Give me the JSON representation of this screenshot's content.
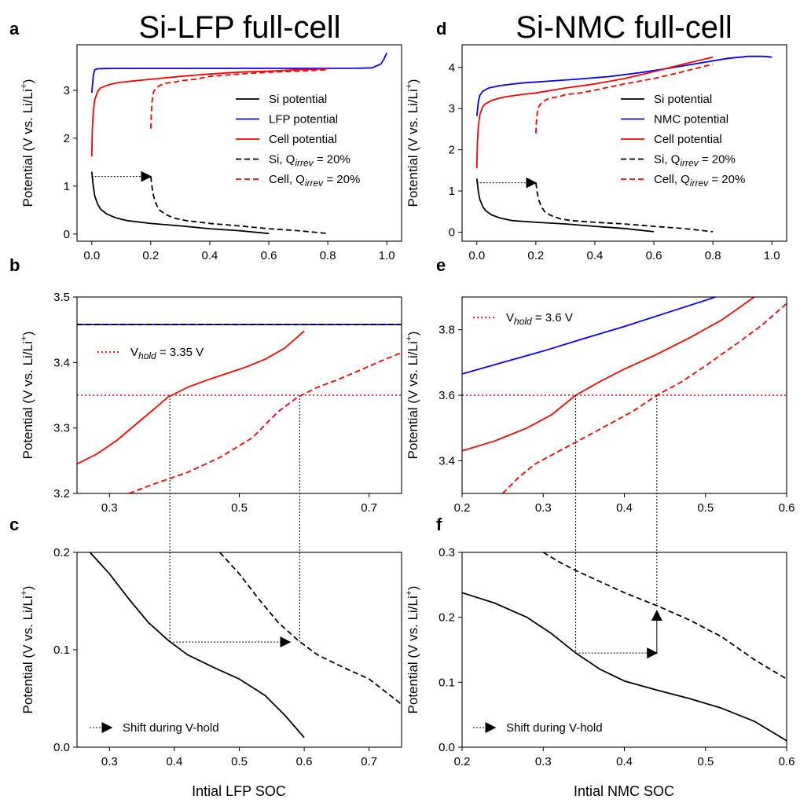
{
  "titles": {
    "left": "Si-LFP full-cell",
    "right": "Si-NMC full-cell"
  },
  "ylabel": "Potential (V vs. Li/Li",
  "ylabel_sup": "+",
  "ylabel_close": ")",
  "xlabels": {
    "left": "Intial LFP SOC",
    "right": "Intial NMC SOC"
  },
  "colors": {
    "si": "#000000",
    "cathode": "#0000ff",
    "cell": "#ff0000"
  },
  "chart_data": [
    {
      "panel": "a",
      "type": "line",
      "xlim": [
        -0.05,
        1.05
      ],
      "ylim": [
        -0.15,
        3.95
      ],
      "xticks": [
        0.0,
        0.2,
        0.4,
        0.6,
        0.8,
        1.0
      ],
      "xtick_labels": [
        "0.0",
        "0.2",
        "0.4",
        "0.6",
        "0.8",
        "1.0"
      ],
      "yticks": [
        0,
        1,
        2,
        3
      ],
      "ytick_labels": [
        "0",
        "1",
        "2",
        "3"
      ],
      "legend": [
        {
          "label": "Si potential",
          "color": "#000000",
          "style": "solid"
        },
        {
          "label": "LFP potential",
          "color": "#0000ff",
          "style": "solid"
        },
        {
          "label": "Cell potential",
          "color": "#ff0000",
          "style": "solid"
        },
        {
          "label": "Si, Q",
          "sub": "irrev",
          "suffix": " = 20%",
          "color": "#000000",
          "style": "dashed"
        },
        {
          "label": "Cell, Q",
          "sub": "irrev",
          "suffix": " = 20%",
          "color": "#ff0000",
          "style": "dashed"
        }
      ],
      "series": [
        {
          "color": "#000000",
          "style": "solid",
          "x": [
            0,
            0.005,
            0.01,
            0.02,
            0.03,
            0.05,
            0.08,
            0.12,
            0.2,
            0.3,
            0.4,
            0.5,
            0.6
          ],
          "y": [
            1.3,
            1.0,
            0.8,
            0.62,
            0.52,
            0.42,
            0.34,
            0.28,
            0.22,
            0.17,
            0.11,
            0.07,
            0.01
          ]
        },
        {
          "color": "#0000ff",
          "style": "solid",
          "x": [
            0,
            0.005,
            0.01,
            0.02,
            0.05,
            0.1,
            0.3,
            0.5,
            0.7,
            0.9,
            0.95,
            0.98,
            0.99,
            1.0
          ],
          "y": [
            2.95,
            3.3,
            3.43,
            3.45,
            3.455,
            3.457,
            3.458,
            3.458,
            3.458,
            3.46,
            3.47,
            3.55,
            3.65,
            3.78
          ]
        },
        {
          "color": "#ff0000",
          "style": "solid",
          "x": [
            0,
            0.002,
            0.005,
            0.01,
            0.02,
            0.03,
            0.05,
            0.08,
            0.1,
            0.15,
            0.2,
            0.3,
            0.4,
            0.5,
            0.6,
            0.7,
            0.8
          ],
          "y": [
            1.62,
            2.2,
            2.55,
            2.8,
            2.98,
            3.05,
            3.1,
            3.15,
            3.17,
            3.2,
            3.23,
            3.29,
            3.34,
            3.38,
            3.4,
            3.43,
            3.45
          ]
        },
        {
          "color": "#000000",
          "style": "dashed",
          "x": [
            0.2,
            0.205,
            0.21,
            0.22,
            0.23,
            0.25,
            0.28,
            0.32,
            0.4,
            0.5,
            0.6,
            0.7,
            0.8
          ],
          "y": [
            1.2,
            0.95,
            0.78,
            0.6,
            0.5,
            0.41,
            0.33,
            0.28,
            0.22,
            0.17,
            0.11,
            0.07,
            0.01
          ]
        },
        {
          "color": "#ff0000",
          "style": "dashed",
          "x": [
            0.2,
            0.202,
            0.205,
            0.21,
            0.22,
            0.23,
            0.25,
            0.28,
            0.3,
            0.35,
            0.4,
            0.5,
            0.6,
            0.7,
            0.8
          ],
          "y": [
            2.2,
            2.55,
            2.8,
            2.98,
            3.05,
            3.1,
            3.15,
            3.17,
            3.2,
            3.23,
            3.29,
            3.34,
            3.38,
            3.4,
            3.43
          ]
        }
      ],
      "arrow": {
        "from": [
          0.0,
          1.2
        ],
        "to": [
          0.2,
          1.2
        ]
      }
    },
    {
      "panel": "b",
      "type": "line",
      "xlim": [
        0.25,
        0.75
      ],
      "ylim": [
        3.2,
        3.5
      ],
      "xticks": [
        0.3,
        0.5,
        0.7
      ],
      "xtick_labels": [
        "0.3",
        "0.5",
        "0.7"
      ],
      "yticks": [
        3.2,
        3.3,
        3.4,
        3.5
      ],
      "ytick_labels": [
        "3.2",
        "3.3",
        "3.4",
        "3.5"
      ],
      "legend": [
        {
          "label": "V",
          "sub": "hold",
          "suffix": " = 3.35 V",
          "color": "#ff0000",
          "style": "dotted"
        }
      ],
      "hline": {
        "y": 3.35,
        "color": "#ff0000"
      },
      "series": [
        {
          "color": "#0000ff",
          "style": "solid",
          "x": [
            0.25,
            0.75
          ],
          "y": [
            3.458,
            3.458
          ]
        },
        {
          "color": "#000000",
          "style": "dashed",
          "x": [
            0.25,
            0.75
          ],
          "y": [
            3.458,
            3.458
          ]
        },
        {
          "color": "#ff0000",
          "style": "solid",
          "x": [
            0.25,
            0.28,
            0.31,
            0.34,
            0.37,
            0.39,
            0.42,
            0.45,
            0.48,
            0.51,
            0.54,
            0.57,
            0.6
          ],
          "y": [
            3.245,
            3.26,
            3.28,
            3.305,
            3.33,
            3.347,
            3.362,
            3.373,
            3.383,
            3.393,
            3.405,
            3.422,
            3.448
          ]
        },
        {
          "color": "#ff0000",
          "style": "dashed",
          "x": [
            0.33,
            0.37,
            0.42,
            0.47,
            0.52,
            0.56,
            0.59,
            0.62,
            0.65,
            0.69,
            0.72,
            0.75
          ],
          "y": [
            3.2,
            3.215,
            3.232,
            3.255,
            3.285,
            3.325,
            3.347,
            3.362,
            3.373,
            3.39,
            3.403,
            3.415
          ]
        }
      ],
      "vlines": [
        0.393,
        0.593
      ]
    },
    {
      "panel": "c",
      "type": "line",
      "xlim": [
        0.25,
        0.75
      ],
      "ylim": [
        0.0,
        0.2
      ],
      "xticks": [
        0.3,
        0.4,
        0.5,
        0.6,
        0.7
      ],
      "xtick_labels": [
        "0.3",
        "0.4",
        "0.5",
        "0.6",
        "0.7"
      ],
      "yticks": [
        0.0,
        0.1,
        0.2
      ],
      "ytick_labels": [
        "0.0",
        "0.1",
        "0.2"
      ],
      "legend": [
        {
          "label": "Shift during V-hold",
          "color": "#000000",
          "style": "arrow"
        }
      ],
      "series": [
        {
          "color": "#000000",
          "style": "solid",
          "x": [
            0.27,
            0.3,
            0.33,
            0.36,
            0.39,
            0.42,
            0.46,
            0.5,
            0.54,
            0.57,
            0.6
          ],
          "y": [
            0.2,
            0.178,
            0.152,
            0.128,
            0.11,
            0.095,
            0.082,
            0.07,
            0.053,
            0.033,
            0.01
          ]
        },
        {
          "color": "#000000",
          "style": "dashed",
          "x": [
            0.47,
            0.5,
            0.53,
            0.56,
            0.59,
            0.62,
            0.66,
            0.7,
            0.75
          ],
          "y": [
            0.2,
            0.178,
            0.152,
            0.128,
            0.11,
            0.095,
            0.082,
            0.07,
            0.044
          ]
        }
      ],
      "vlines": [
        0.393,
        0.593
      ],
      "arrow": {
        "from": [
          0.393,
          0.108
        ],
        "to": [
          0.578,
          0.108
        ]
      }
    },
    {
      "panel": "d",
      "type": "line",
      "xlim": [
        -0.05,
        1.05
      ],
      "ylim": [
        -0.22,
        4.55
      ],
      "xticks": [
        0.0,
        0.2,
        0.4,
        0.6,
        0.8,
        1.0
      ],
      "xtick_labels": [
        "0.0",
        "0.2",
        "0.4",
        "0.6",
        "0.8",
        "1.0"
      ],
      "yticks": [
        0,
        1,
        2,
        3,
        4
      ],
      "ytick_labels": [
        "0",
        "1",
        "2",
        "3",
        "4"
      ],
      "legend": [
        {
          "label": "Si potential",
          "color": "#000000",
          "style": "solid"
        },
        {
          "label": "NMC potential",
          "color": "#0000ff",
          "style": "solid"
        },
        {
          "label": "Cell potential",
          "color": "#ff0000",
          "style": "solid"
        },
        {
          "label": "Si, Q",
          "sub": "irrev",
          "suffix": " = 20%",
          "color": "#000000",
          "style": "dashed"
        },
        {
          "label": "Cell, Q",
          "sub": "irrev",
          "suffix": " = 20%",
          "color": "#ff0000",
          "style": "dashed"
        }
      ],
      "series": [
        {
          "color": "#000000",
          "style": "solid",
          "x": [
            0,
            0.005,
            0.01,
            0.02,
            0.03,
            0.05,
            0.08,
            0.12,
            0.2,
            0.3,
            0.4,
            0.5,
            0.6
          ],
          "y": [
            1.3,
            1.0,
            0.8,
            0.62,
            0.52,
            0.42,
            0.34,
            0.28,
            0.24,
            0.2,
            0.14,
            0.09,
            0.01
          ]
        },
        {
          "color": "#0000ff",
          "style": "solid",
          "x": [
            0,
            0.005,
            0.01,
            0.02,
            0.04,
            0.08,
            0.15,
            0.25,
            0.35,
            0.45,
            0.55,
            0.65,
            0.75,
            0.85,
            0.92,
            0.97,
            1.0
          ],
          "y": [
            2.82,
            3.15,
            3.32,
            3.42,
            3.5,
            3.56,
            3.62,
            3.67,
            3.72,
            3.78,
            3.87,
            3.98,
            4.1,
            4.22,
            4.27,
            4.27,
            4.25
          ]
        },
        {
          "color": "#ff0000",
          "style": "solid",
          "x": [
            0,
            0.002,
            0.005,
            0.01,
            0.02,
            0.03,
            0.05,
            0.08,
            0.1,
            0.15,
            0.2,
            0.3,
            0.4,
            0.5,
            0.6,
            0.7,
            0.8
          ],
          "y": [
            1.55,
            2.2,
            2.55,
            2.85,
            3.05,
            3.12,
            3.2,
            3.26,
            3.29,
            3.34,
            3.38,
            3.5,
            3.6,
            3.73,
            3.9,
            4.08,
            4.25
          ]
        },
        {
          "color": "#000000",
          "style": "dashed",
          "x": [
            0.2,
            0.205,
            0.21,
            0.22,
            0.23,
            0.25,
            0.28,
            0.32,
            0.4,
            0.5,
            0.6,
            0.7,
            0.8
          ],
          "y": [
            1.2,
            0.95,
            0.78,
            0.6,
            0.5,
            0.41,
            0.33,
            0.28,
            0.24,
            0.2,
            0.14,
            0.09,
            0.01
          ]
        },
        {
          "color": "#ff0000",
          "style": "dashed",
          "x": [
            0.2,
            0.202,
            0.205,
            0.21,
            0.22,
            0.23,
            0.25,
            0.28,
            0.3,
            0.35,
            0.4,
            0.5,
            0.6,
            0.7,
            0.8
          ],
          "y": [
            2.4,
            2.7,
            2.9,
            3.05,
            3.15,
            3.2,
            3.26,
            3.29,
            3.34,
            3.38,
            3.45,
            3.6,
            3.73,
            3.9,
            4.08
          ]
        }
      ],
      "arrow": {
        "from": [
          0.0,
          1.2
        ],
        "to": [
          0.2,
          1.2
        ]
      }
    },
    {
      "panel": "e",
      "type": "line",
      "xlim": [
        0.2,
        0.6
      ],
      "ylim": [
        3.3,
        3.9
      ],
      "xticks": [
        0.2,
        0.3,
        0.4,
        0.5,
        0.6
      ],
      "xtick_labels": [
        "0.2",
        "0.3",
        "0.4",
        "0.5",
        "0.6"
      ],
      "yticks": [
        3.4,
        3.6,
        3.8
      ],
      "ytick_labels": [
        "3.4",
        "3.6",
        "3.8"
      ],
      "legend": [
        {
          "label": "V",
          "sub": "hold",
          "suffix": " = 3.6 V",
          "color": "#ff0000",
          "style": "dotted"
        }
      ],
      "hline": {
        "y": 3.6,
        "color": "#ff0000"
      },
      "series": [
        {
          "color": "#0000ff",
          "style": "solid",
          "x": [
            0.2,
            0.25,
            0.3,
            0.35,
            0.4,
            0.45,
            0.5,
            0.53
          ],
          "y": [
            3.665,
            3.7,
            3.735,
            3.773,
            3.81,
            3.85,
            3.89,
            3.915
          ]
        },
        {
          "color": "#ff0000",
          "style": "solid",
          "x": [
            0.2,
            0.24,
            0.28,
            0.31,
            0.34,
            0.37,
            0.4,
            0.44,
            0.48,
            0.52,
            0.56
          ],
          "y": [
            3.43,
            3.46,
            3.5,
            3.54,
            3.6,
            3.642,
            3.68,
            3.725,
            3.775,
            3.83,
            3.9
          ]
        },
        {
          "color": "#ff0000",
          "style": "dashed",
          "x": [
            0.25,
            0.27,
            0.29,
            0.32,
            0.35,
            0.38,
            0.41,
            0.44,
            0.47,
            0.5,
            0.54,
            0.57,
            0.6
          ],
          "y": [
            3.3,
            3.35,
            3.39,
            3.43,
            3.47,
            3.51,
            3.55,
            3.6,
            3.64,
            3.69,
            3.76,
            3.815,
            3.88
          ]
        }
      ],
      "vlines": [
        0.34,
        0.44
      ]
    },
    {
      "panel": "f",
      "type": "line",
      "xlim": [
        0.2,
        0.6
      ],
      "ylim": [
        0.0,
        0.3
      ],
      "xticks": [
        0.2,
        0.3,
        0.4,
        0.5,
        0.6
      ],
      "xtick_labels": [
        "0.2",
        "0.3",
        "0.4",
        "0.5",
        "0.6"
      ],
      "yticks": [
        0.0,
        0.1,
        0.2,
        0.3
      ],
      "ytick_labels": [
        "0.0",
        "0.1",
        "0.2",
        "0.3"
      ],
      "legend": [
        {
          "label": "Shift during V-hold",
          "color": "#000000",
          "style": "arrow"
        }
      ],
      "series": [
        {
          "color": "#000000",
          "style": "solid",
          "x": [
            0.2,
            0.24,
            0.28,
            0.31,
            0.34,
            0.37,
            0.4,
            0.44,
            0.48,
            0.52,
            0.56,
            0.6
          ],
          "y": [
            0.238,
            0.222,
            0.2,
            0.175,
            0.145,
            0.12,
            0.102,
            0.088,
            0.075,
            0.06,
            0.04,
            0.01
          ]
        },
        {
          "color": "#000000",
          "style": "dashed",
          "x": [
            0.3,
            0.32,
            0.34,
            0.37,
            0.4,
            0.44,
            0.48,
            0.52,
            0.56,
            0.6
          ],
          "y": [
            0.3,
            0.285,
            0.272,
            0.255,
            0.238,
            0.218,
            0.196,
            0.17,
            0.135,
            0.105
          ]
        }
      ],
      "vlines": [
        0.34,
        0.44
      ],
      "arrow": {
        "from": [
          0.34,
          0.145
        ],
        "to": [
          0.44,
          0.145
        ]
      },
      "arrow2": {
        "from": [
          0.44,
          0.145
        ],
        "to": [
          0.44,
          0.21
        ]
      }
    }
  ]
}
